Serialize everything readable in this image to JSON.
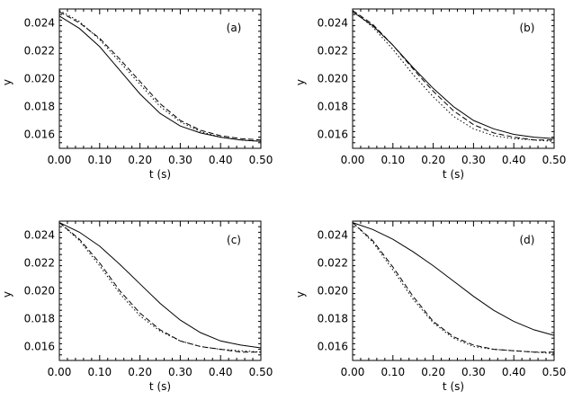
{
  "chart_data": [
    {
      "type": "line",
      "panel_label": "(a)",
      "xlabel": "t (s)",
      "ylabel": "y",
      "xlim": [
        0.0,
        0.5
      ],
      "ylim": [
        0.015,
        0.025
      ],
      "xticks": [
        "0.00",
        "0.10",
        "0.20",
        "0.30",
        "0.40",
        "0.50"
      ],
      "yticks": [
        "0.016",
        "0.018",
        "0.020",
        "0.022",
        "0.024"
      ],
      "x": [
        0.0,
        0.05,
        0.1,
        0.15,
        0.2,
        0.25,
        0.3,
        0.35,
        0.4,
        0.45,
        0.5
      ],
      "series": [
        {
          "style": "solid",
          "values": [
            0.0245,
            0.0236,
            0.0223,
            0.0206,
            0.0189,
            0.0175,
            0.0166,
            0.0161,
            0.0158,
            0.0156,
            0.0155
          ]
        },
        {
          "style": "dashed",
          "values": [
            0.0248,
            0.024,
            0.0229,
            0.0214,
            0.0198,
            0.0182,
            0.017,
            0.0163,
            0.0159,
            0.0157,
            0.0156
          ]
        },
        {
          "style": "dotted",
          "values": [
            0.0249,
            0.0241,
            0.0228,
            0.0212,
            0.0196,
            0.018,
            0.0169,
            0.0162,
            0.0158,
            0.0156,
            0.0155
          ]
        }
      ]
    },
    {
      "type": "line",
      "panel_label": "(b)",
      "xlabel": "t (s)",
      "ylabel": "y",
      "xlim": [
        0.0,
        0.5
      ],
      "ylim": [
        0.015,
        0.025
      ],
      "xticks": [
        "0.00",
        "0.10",
        "0.20",
        "0.30",
        "0.40",
        "0.50"
      ],
      "yticks": [
        "0.016",
        "0.018",
        "0.020",
        "0.022",
        "0.024"
      ],
      "x": [
        0.0,
        0.05,
        0.1,
        0.15,
        0.2,
        0.25,
        0.3,
        0.35,
        0.4,
        0.45,
        0.5
      ],
      "series": [
        {
          "style": "solid",
          "values": [
            0.0248,
            0.0238,
            0.0224,
            0.0208,
            0.0193,
            0.018,
            0.017,
            0.0164,
            0.016,
            0.0158,
            0.0157
          ]
        },
        {
          "style": "dashed",
          "values": [
            0.0249,
            0.0239,
            0.0224,
            0.0207,
            0.0191,
            0.0177,
            0.0167,
            0.0161,
            0.0158,
            0.0156,
            0.0156
          ]
        },
        {
          "style": "dotted",
          "values": [
            0.0249,
            0.0237,
            0.0221,
            0.0203,
            0.0187,
            0.0173,
            0.0164,
            0.0159,
            0.0157,
            0.0156,
            0.0155
          ]
        }
      ]
    },
    {
      "type": "line",
      "panel_label": "(c)",
      "xlabel": "t (s)",
      "ylabel": "y",
      "xlim": [
        0.0,
        0.5
      ],
      "ylim": [
        0.015,
        0.025
      ],
      "xticks": [
        "0.00",
        "0.10",
        "0.20",
        "0.30",
        "0.40",
        "0.50"
      ],
      "yticks": [
        "0.016",
        "0.018",
        "0.020",
        "0.022",
        "0.024"
      ],
      "x": [
        0.0,
        0.05,
        0.1,
        0.15,
        0.2,
        0.25,
        0.3,
        0.35,
        0.4,
        0.45,
        0.5
      ],
      "series": [
        {
          "style": "solid",
          "values": [
            0.0249,
            0.0242,
            0.0232,
            0.0219,
            0.0205,
            0.0191,
            0.0179,
            0.017,
            0.0164,
            0.0161,
            0.0159
          ]
        },
        {
          "style": "dashed",
          "values": [
            0.0249,
            0.0237,
            0.022,
            0.02,
            0.0184,
            0.0172,
            0.0164,
            0.016,
            0.0158,
            0.0156,
            0.0156
          ]
        },
        {
          "style": "dotted",
          "values": [
            0.0249,
            0.0236,
            0.0218,
            0.0198,
            0.0182,
            0.0171,
            0.0164,
            0.016,
            0.0158,
            0.0157,
            0.0156
          ]
        }
      ]
    },
    {
      "type": "line",
      "panel_label": "(d)",
      "xlabel": "t (s)",
      "ylabel": "y",
      "xlim": [
        0.0,
        0.5
      ],
      "ylim": [
        0.015,
        0.025
      ],
      "xticks": [
        "0.00",
        "0.10",
        "0.20",
        "0.30",
        "0.40",
        "0.50"
      ],
      "yticks": [
        "0.016",
        "0.018",
        "0.020",
        "0.022",
        "0.024"
      ],
      "x": [
        0.0,
        0.05,
        0.1,
        0.15,
        0.2,
        0.25,
        0.3,
        0.35,
        0.4,
        0.45,
        0.5
      ],
      "series": [
        {
          "style": "solid",
          "values": [
            0.0249,
            0.0244,
            0.0237,
            0.0228,
            0.0218,
            0.0207,
            0.0196,
            0.0186,
            0.0178,
            0.0172,
            0.0168
          ]
        },
        {
          "style": "dashed",
          "values": [
            0.0249,
            0.0236,
            0.0217,
            0.0196,
            0.0178,
            0.0167,
            0.0161,
            0.0158,
            0.0157,
            0.0156,
            0.0156
          ]
        },
        {
          "style": "dotted",
          "values": [
            0.0249,
            0.0235,
            0.0215,
            0.0194,
            0.0177,
            0.0166,
            0.016,
            0.0158,
            0.0157,
            0.0156,
            0.0155
          ]
        }
      ]
    }
  ]
}
